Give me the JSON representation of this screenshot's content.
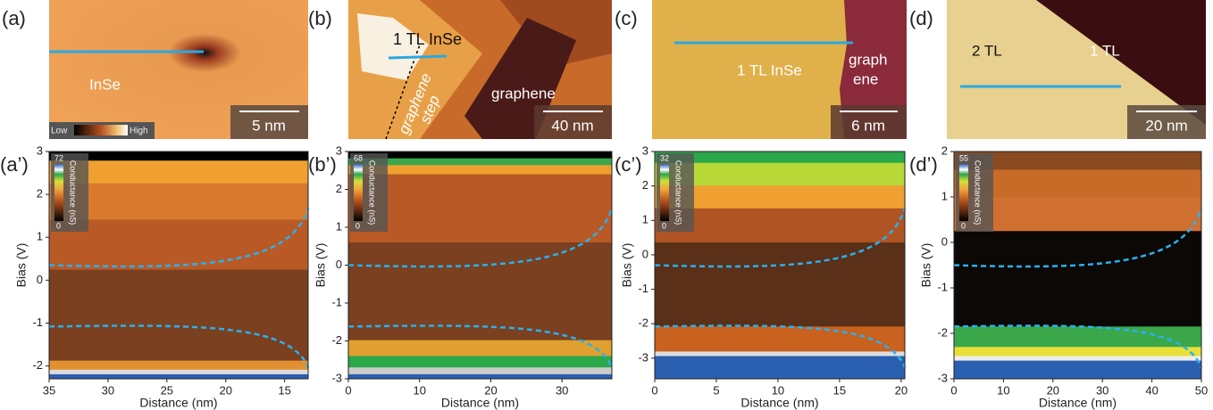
{
  "panels": [
    {
      "label": "(a)",
      "texts": [
        "InSe"
      ],
      "scale_bar": "5 nm",
      "legend": [
        "Low",
        "High"
      ]
    },
    {
      "label": "(b)",
      "texts": [
        "1 TL InSe",
        "graphene",
        "step",
        "graphene"
      ],
      "scale_bar": "40 nm"
    },
    {
      "label": "(c)",
      "texts": [
        "1 TL InSe",
        "graph",
        "ene"
      ],
      "scale_bar": "6 nm"
    },
    {
      "label": "(d)",
      "texts": [
        "2 TL",
        "1 TL"
      ],
      "scale_bar": "20 nm"
    }
  ],
  "maps": [
    {
      "label": "(a’)",
      "xlabel": "Distance (nm)",
      "ylabel": "Bias (V)",
      "xlim": [
        35,
        13
      ],
      "xticks": [
        35,
        30,
        25,
        20,
        15
      ],
      "ylim": [
        -2.3,
        3
      ],
      "yticks": [
        -2,
        -1,
        0,
        1,
        2,
        3
      ],
      "cbar_label": "Conductance (nS)",
      "cbar_max": 72,
      "cbar_min": 0
    },
    {
      "label": "(b’)",
      "xlabel": "Distance (nm)",
      "ylabel": "Bias (V)",
      "xlim": [
        0,
        37
      ],
      "xticks": [
        0,
        10,
        20,
        30
      ],
      "ylim": [
        -3,
        3
      ],
      "yticks": [
        -3,
        -2,
        -1,
        0,
        1,
        2,
        3
      ],
      "cbar_label": "Conductance (nS)",
      "cbar_max": 68,
      "cbar_min": 0
    },
    {
      "label": "(c’)",
      "xlabel": "Distance (nm)",
      "ylabel": "Bias (V)",
      "xlim": [
        0,
        20.3
      ],
      "xticks": [
        0,
        5,
        10,
        15,
        20
      ],
      "ylim": [
        -3.6,
        3
      ],
      "yticks": [
        -3,
        -2,
        -1,
        0,
        1,
        2,
        3
      ],
      "cbar_label": "Conductance (nS)",
      "cbar_max": 32,
      "cbar_min": 0
    },
    {
      "label": "(d’)",
      "xlabel": "Distance (nm)",
      "ylabel": "Bias (V)",
      "xlim": [
        0,
        50
      ],
      "xticks": [
        0,
        10,
        20,
        30,
        40,
        50
      ],
      "ylim": [
        -3,
        2
      ],
      "yticks": [
        -3,
        -2,
        -1,
        0,
        1,
        2
      ],
      "cbar_label": "Conductance (nS)",
      "cbar_max": 55,
      "cbar_min": 0
    }
  ]
}
